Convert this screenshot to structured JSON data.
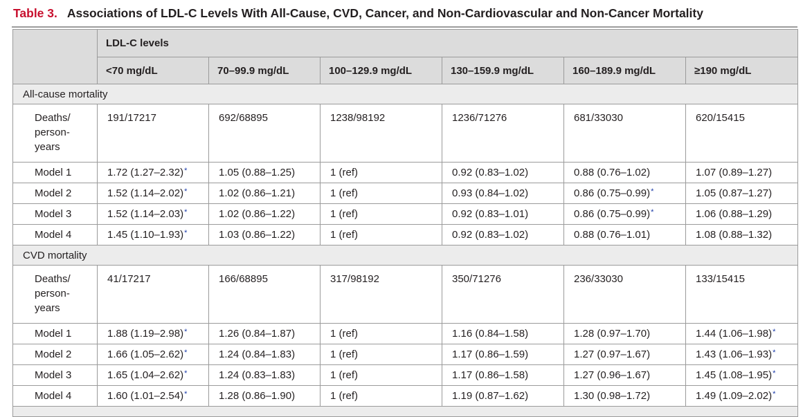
{
  "table_title": {
    "number": "Table 3.",
    "text": "Associations of LDL-C Levels With All-Cause, CVD, Cancer, and Non-Cardiovascular and Non-Cancer Mortality"
  },
  "header": {
    "group_label": "LDL-C levels",
    "columns": [
      "<70 mg/dL",
      "70–99.9 mg/dL",
      "100–129.9 mg/dL",
      "130–159.9 mg/dL",
      "160–189.9 mg/dL",
      "≥190 mg/dL"
    ]
  },
  "sections": [
    {
      "title": "All-cause mortality",
      "deaths_label": [
        "Deaths/",
        "person-",
        "years"
      ],
      "deaths": [
        "191/17217",
        "692/68895",
        "1238/98192",
        "1236/71276",
        "681/33030",
        "620/15415"
      ],
      "models": [
        {
          "label": "Model 1",
          "values": [
            {
              "text": "1.72 (1.27–2.32)",
              "sig": "*"
            },
            {
              "text": "1.05 (0.88–1.25)",
              "sig": ""
            },
            {
              "text": "1 (ref)",
              "sig": ""
            },
            {
              "text": "0.92 (0.83–1.02)",
              "sig": ""
            },
            {
              "text": "0.88 (0.76–1.02)",
              "sig": ""
            },
            {
              "text": "1.07 (0.89–1.27)",
              "sig": ""
            }
          ]
        },
        {
          "label": "Model 2",
          "values": [
            {
              "text": "1.52 (1.14–2.02)",
              "sig": "*"
            },
            {
              "text": "1.02 (0.86–1.21)",
              "sig": ""
            },
            {
              "text": "1 (ref)",
              "sig": ""
            },
            {
              "text": "0.93 (0.84–1.02)",
              "sig": ""
            },
            {
              "text": "0.86 (0.75–0.99)",
              "sig": "*"
            },
            {
              "text": "1.05 (0.87–1.27)",
              "sig": ""
            }
          ]
        },
        {
          "label": "Model 3",
          "values": [
            {
              "text": "1.52 (1.14–2.03)",
              "sig": "*"
            },
            {
              "text": "1.02 (0.86–1.22)",
              "sig": ""
            },
            {
              "text": "1 (ref)",
              "sig": ""
            },
            {
              "text": "0.92 (0.83–1.01)",
              "sig": ""
            },
            {
              "text": "0.86 (0.75–0.99)",
              "sig": "*"
            },
            {
              "text": "1.06 (0.88–1.29)",
              "sig": ""
            }
          ]
        },
        {
          "label": "Model 4",
          "values": [
            {
              "text": "1.45 (1.10–1.93)",
              "sig": "*"
            },
            {
              "text": "1.03 (0.86–1.22)",
              "sig": ""
            },
            {
              "text": "1 (ref)",
              "sig": ""
            },
            {
              "text": "0.92 (0.83–1.02)",
              "sig": ""
            },
            {
              "text": "0.88 (0.76–1.01)",
              "sig": ""
            },
            {
              "text": "1.08 (0.88–1.32)",
              "sig": ""
            }
          ]
        }
      ]
    },
    {
      "title": "CVD mortality",
      "deaths_label": [
        "Deaths/",
        "person-",
        "years"
      ],
      "deaths": [
        "41/17217",
        "166/68895",
        "317/98192",
        "350/71276",
        "236/33030",
        "133/15415"
      ],
      "models": [
        {
          "label": "Model 1",
          "values": [
            {
              "text": "1.88 (1.19–2.98)",
              "sig": "*"
            },
            {
              "text": "1.26 (0.84–1.87)",
              "sig": ""
            },
            {
              "text": "1 (ref)",
              "sig": ""
            },
            {
              "text": "1.16 (0.84–1.58)",
              "sig": ""
            },
            {
              "text": "1.28 (0.97–1.70)",
              "sig": ""
            },
            {
              "text": "1.44 (1.06–1.98)",
              "sig": "*"
            }
          ]
        },
        {
          "label": "Model 2",
          "values": [
            {
              "text": "1.66 (1.05–2.62)",
              "sig": "*"
            },
            {
              "text": "1.24 (0.84–1.83)",
              "sig": ""
            },
            {
              "text": "1 (ref)",
              "sig": ""
            },
            {
              "text": "1.17 (0.86–1.59)",
              "sig": ""
            },
            {
              "text": "1.27 (0.97–1.67)",
              "sig": ""
            },
            {
              "text": "1.43 (1.06–1.93)",
              "sig": "*"
            }
          ]
        },
        {
          "label": "Model 3",
          "values": [
            {
              "text": "1.65 (1.04–2.62)",
              "sig": "*"
            },
            {
              "text": "1.24 (0.83–1.83)",
              "sig": ""
            },
            {
              "text": "1 (ref)",
              "sig": ""
            },
            {
              "text": "1.17 (0.86–1.58)",
              "sig": ""
            },
            {
              "text": "1.27 (0.96–1.67)",
              "sig": ""
            },
            {
              "text": "1.45 (1.08–1.95)",
              "sig": "*"
            }
          ]
        },
        {
          "label": "Model 4",
          "values": [
            {
              "text": "1.60 (1.01–2.54)",
              "sig": "*"
            },
            {
              "text": "1.28 (0.86–1.90)",
              "sig": ""
            },
            {
              "text": "1 (ref)",
              "sig": ""
            },
            {
              "text": "1.19 (0.87–1.62)",
              "sig": ""
            },
            {
              "text": "1.30 (0.98–1.72)",
              "sig": ""
            },
            {
              "text": "1.49 (1.09–2.02)",
              "sig": "*"
            }
          ]
        }
      ]
    }
  ]
}
